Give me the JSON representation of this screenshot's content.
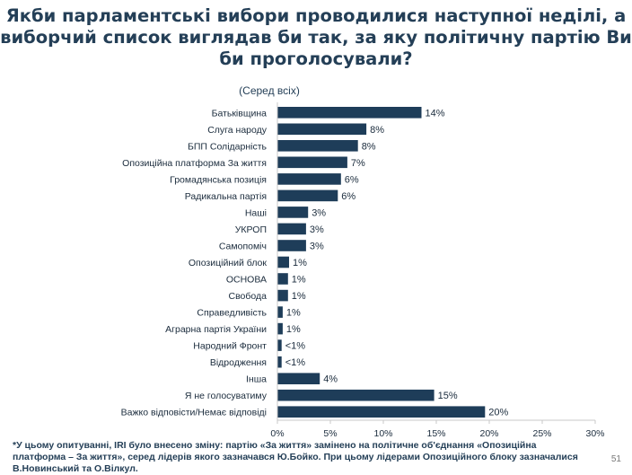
{
  "title": "Якби парламентські вибори проводилися наступної неділі, а\nвиборчий список виглядав би так, за яку політичну партію Ви\nби проголосували?",
  "subtitle": "(Серед всіх)",
  "footnote": "*У цьому опитуванні, IRI було внесено зміну: партію «За життя» замінено на політичне об'єднання «Опозиційна платформа – За життя», серед лідерів якого зазначався Ю.Бойко. При цьому лідерами Опозиційного блоку зазначалися В.Новинський та О.Вілкул.",
  "page_number": "51",
  "colors": {
    "bar": "#1e3d59",
    "axis": "#c8c8c8"
  },
  "chart_data": {
    "type": "bar",
    "orientation": "horizontal",
    "title": "Якби парламентські вибори проводилися наступної неділі, а виборчий список виглядав би так, за яку політичну партію Ви би проголосували?",
    "subtitle": "(Серед всіх)",
    "categories": [
      "Батьківщина",
      "Слуга народу",
      "БПП Солідарність",
      "Опозиційна платформа За життя",
      "Громадянська позиція",
      "Радикальна партія",
      "Наші",
      "УКРОП",
      "Самопоміч",
      "Опозиційний блок",
      "ОСНОВА",
      "Свобода",
      "Справедливість",
      "Аграрна партія України",
      "Народний Фронт",
      "Відродження",
      "Інша",
      "Я не голосуватиму",
      "Важко відповісти/Немає відповіді"
    ],
    "values": [
      13.6,
      8.4,
      7.6,
      6.6,
      6.0,
      5.7,
      2.9,
      2.7,
      2.7,
      1.1,
      1.0,
      1.0,
      0.5,
      0.5,
      0.4,
      0.4,
      4.0,
      14.8,
      19.6
    ],
    "value_labels": [
      "14%",
      "8%",
      "8%",
      "7%",
      "6%",
      "6%",
      "3%",
      "3%",
      "3%",
      "1%",
      "1%",
      "1%",
      "1%",
      "1%",
      "<1%",
      "<1%",
      "4%",
      "15%",
      "20%"
    ],
    "xlim": [
      0,
      30
    ],
    "xticks": [
      "0%",
      "5%",
      "10%",
      "15%",
      "20%",
      "25%",
      "30%"
    ],
    "xtick_values": [
      0,
      5,
      10,
      15,
      20,
      25,
      30
    ],
    "grid": false
  }
}
